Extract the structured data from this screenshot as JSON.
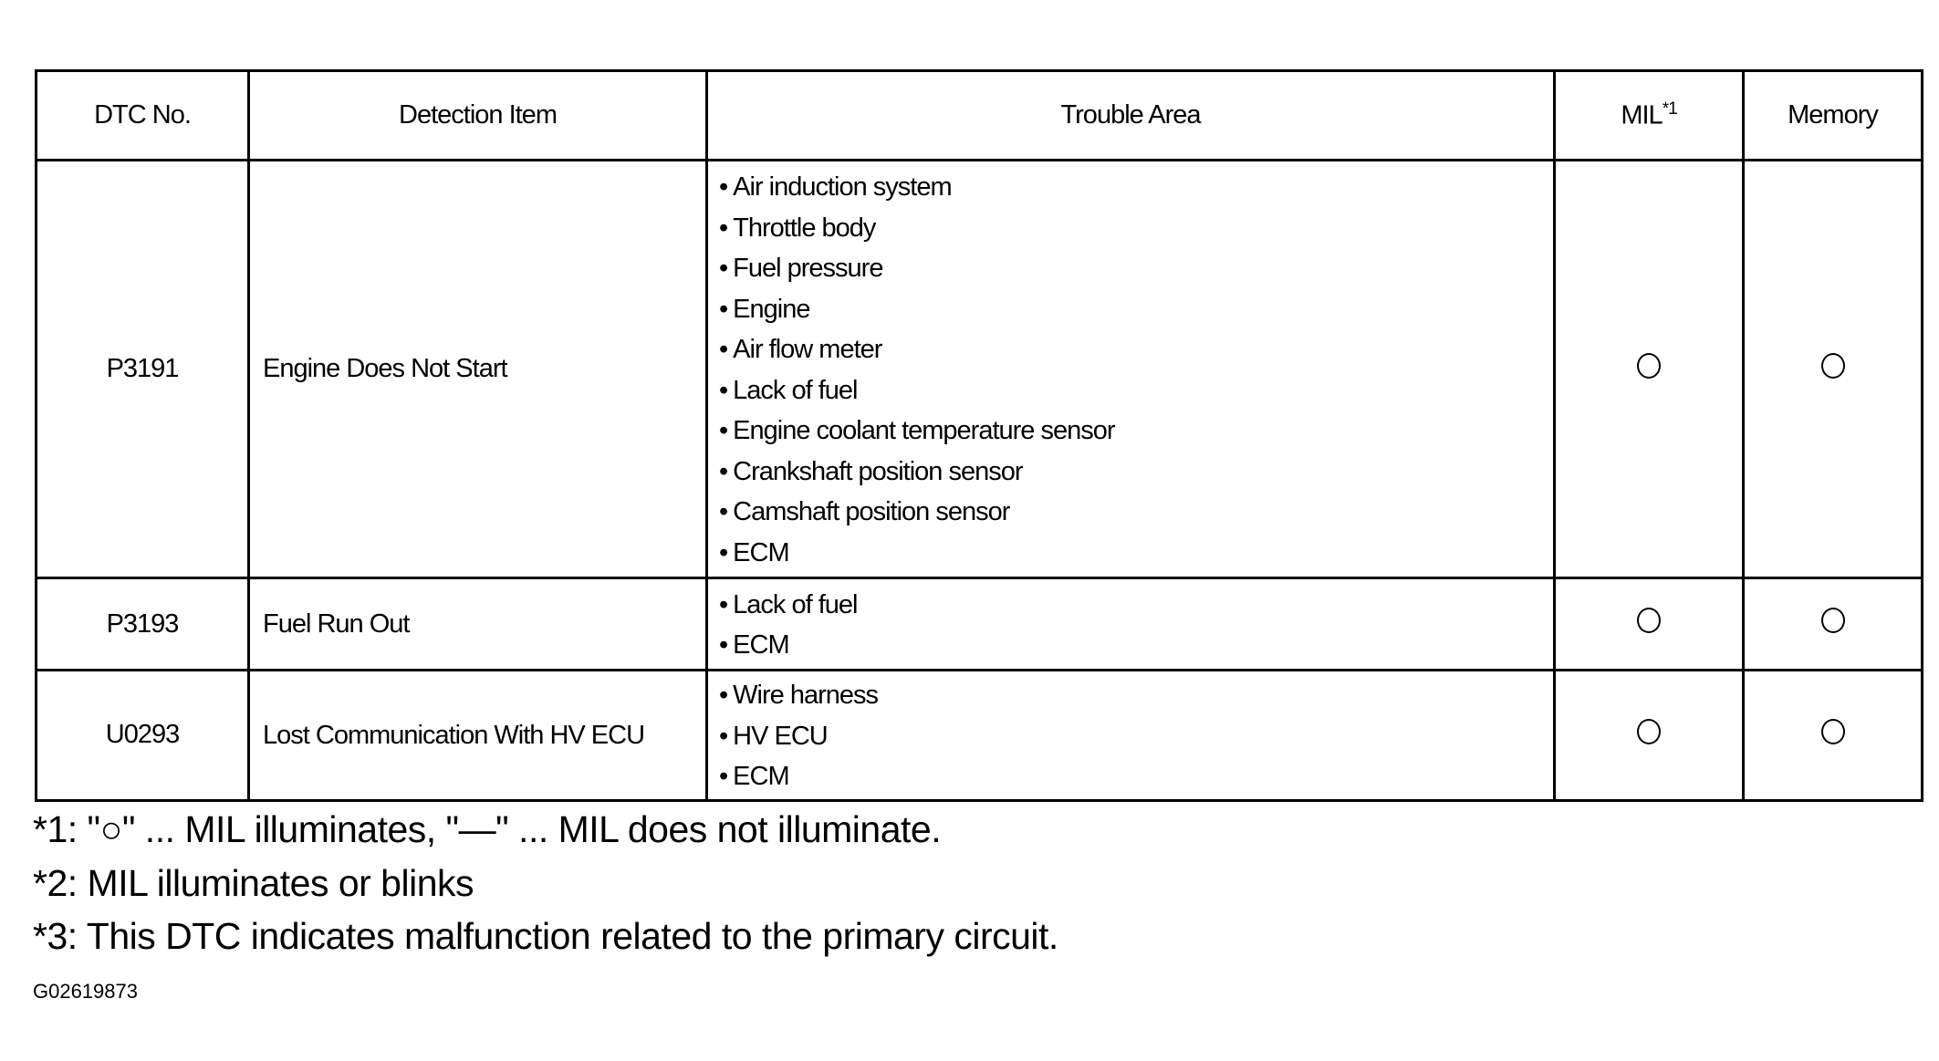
{
  "table": {
    "headers": {
      "dtc": "DTC No.",
      "detection": "Detection Item",
      "trouble": "Trouble Area",
      "mil": "MIL",
      "mil_note": "*1",
      "memory": "Memory"
    },
    "rows": [
      {
        "dtc": "P3191",
        "detection": "Engine Does Not Start",
        "trouble": [
          "Air induction system",
          "Throttle body",
          "Fuel pressure",
          "Engine",
          "Air flow meter",
          "Lack of  fuel",
          "Engine coolant temperature sensor",
          "Crankshaft position sensor",
          "Camshaft position sensor",
          "ECM"
        ],
        "mil": "circle",
        "memory": "circle"
      },
      {
        "dtc": "P3193",
        "detection": "Fuel Run Out",
        "trouble": [
          "Lack of fuel",
          "ECM"
        ],
        "mil": "circle",
        "memory": "circle"
      },
      {
        "dtc": "U0293",
        "detection": "Lost Communication With HV ECU",
        "trouble": [
          "Wire harness",
          "HV ECU",
          "ECM"
        ],
        "mil": "circle",
        "memory": "circle"
      }
    ]
  },
  "footnotes": [
    "*1: \"○\" ... MIL illuminates, \"—\" ... MIL does not illuminate.",
    "*2: MIL illuminates or blinks",
    "*3: This DTC indicates malfunction related to the primary circuit."
  ],
  "figure_id": "G02619873"
}
